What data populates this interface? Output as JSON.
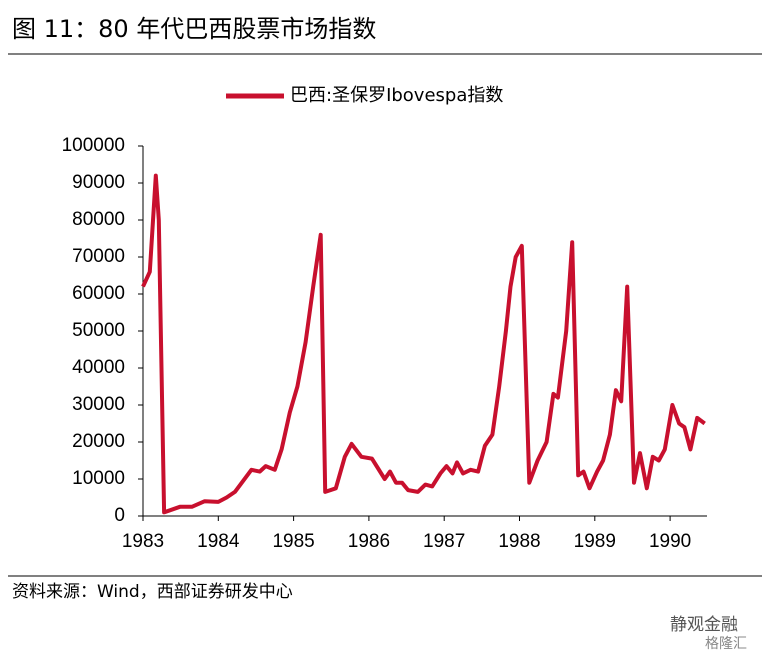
{
  "chart_data": {
    "type": "line",
    "title": "图 11：80 年代巴西股票市场指数",
    "source": "资料来源：Wind，西部证券研发中心",
    "watermark": [
      "静观金融",
      "格隆汇"
    ],
    "xlim": [
      1983,
      1990.49
    ],
    "xticks": [
      1983,
      1984,
      1985,
      1986,
      1987,
      1988,
      1989,
      1990
    ],
    "ylim": [
      0,
      100000
    ],
    "yticks": [
      0,
      10000,
      20000,
      30000,
      40000,
      50000,
      60000,
      70000,
      80000,
      90000,
      100000
    ],
    "grid": false,
    "legend": "top",
    "series": [
      {
        "name": "巴西:圣保罗Ibovespa指数",
        "color": "#c8102e",
        "x": [
          1983,
          1983.09,
          1983.17,
          1983.21,
          1983.28,
          1983.49,
          1983.65,
          1983.82,
          1984.0,
          1984.11,
          1984.22,
          1984.44,
          1984.55,
          1984.63,
          1984.75,
          1984.84,
          1984.95,
          1985.05,
          1985.16,
          1985.26,
          1985.36,
          1985.42,
          1985.56,
          1985.68,
          1985.77,
          1985.9,
          1986.04,
          1986.21,
          1986.28,
          1986.36,
          1986.44,
          1986.52,
          1986.65,
          1986.75,
          1986.84,
          1986.95,
          1987.03,
          1987.11,
          1987.17,
          1987.25,
          1987.35,
          1987.45,
          1987.54,
          1987.64,
          1987.73,
          1987.82,
          1987.88,
          1987.95,
          1988.03,
          1988.13,
          1988.24,
          1988.36,
          1988.45,
          1988.51,
          1988.62,
          1988.7,
          1988.78,
          1988.85,
          1988.93,
          1989.03,
          1989.11,
          1989.2,
          1989.28,
          1989.35,
          1989.43,
          1989.52,
          1989.6,
          1989.69,
          1989.77,
          1989.85,
          1989.93,
          1990.03,
          1990.12,
          1990.19,
          1990.27,
          1990.36,
          1990.46
        ],
        "values": [
          62000,
          66000,
          92000,
          80000,
          1000,
          2500,
          2500,
          4000,
          3800,
          5000,
          6500,
          12500,
          12000,
          13500,
          12500,
          18000,
          28000,
          35000,
          47000,
          62000,
          76000,
          6500,
          7500,
          16000,
          19500,
          16000,
          15500,
          10000,
          12000,
          9000,
          9000,
          7000,
          6500,
          8500,
          8000,
          11500,
          13500,
          11500,
          14500,
          11500,
          12500,
          12000,
          19000,
          22000,
          35000,
          50000,
          62000,
          70000,
          73000,
          9000,
          15000,
          20000,
          33000,
          32000,
          50000,
          74000,
          11000,
          12000,
          7500,
          12000,
          15000,
          22000,
          34000,
          31000,
          62000,
          9000,
          17000,
          7500,
          16000,
          15000,
          18000,
          30000,
          25000,
          24000,
          18000,
          26500,
          25000
        ]
      }
    ]
  }
}
